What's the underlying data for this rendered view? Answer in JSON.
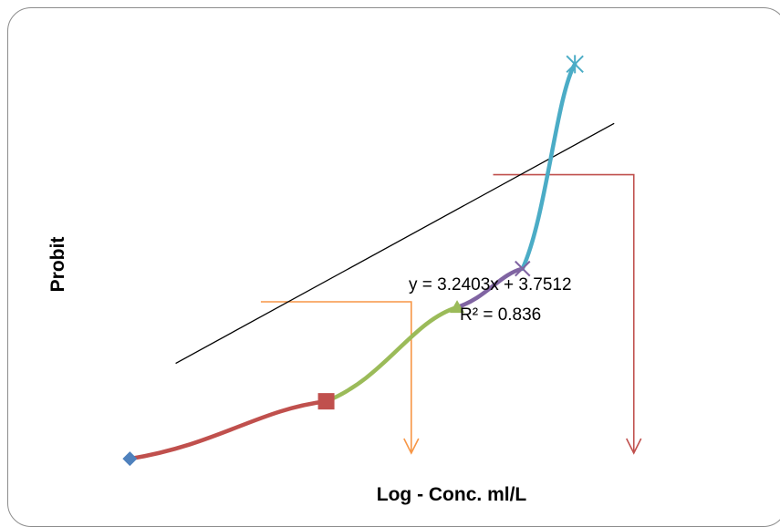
{
  "chart_data": {
    "type": "line",
    "xlabel": "Log - Conc. ml/L",
    "ylabel": "Probit",
    "grid": false,
    "legend": "none",
    "series": [
      {
        "marker": "diamond",
        "color": "#4f81bd",
        "segment_color": "#c0504d",
        "points": [
          [
            0.02,
            3.18
          ],
          [
            0.32,
            3.7
          ]
        ]
      },
      {
        "marker": "square",
        "color": "#c0504d",
        "segment_color": "#9bbb59",
        "points": [
          [
            0.32,
            3.7
          ],
          [
            0.52,
            4.55
          ]
        ]
      },
      {
        "marker": "triangle",
        "color": "#9bbb59",
        "segment_color": "#8064a2",
        "points": [
          [
            0.52,
            4.55
          ],
          [
            0.62,
            4.9
          ]
        ]
      },
      {
        "marker": "x",
        "color": "#8064a2",
        "segment_color": "#4bacc6",
        "points": [
          [
            0.62,
            4.9
          ],
          [
            0.7,
            6.75
          ]
        ]
      },
      {
        "marker": "star",
        "color": "#4bacc6",
        "points": [
          [
            0.7,
            6.75
          ]
        ]
      }
    ],
    "trendline": {
      "slope": 3.2403,
      "intercept": 3.7512,
      "x_range": [
        0.09,
        0.76
      ],
      "color": "#000000"
    },
    "equation_text": "y = 3.2403x + 3.7512",
    "r2_text": "R² = 0.836",
    "lc_guides": [
      {
        "probit": 4.6,
        "log_conc": 0.45,
        "color": "#f79646"
      },
      {
        "probit": 5.75,
        "log_conc": 0.79,
        "color": "#c0504d"
      }
    ],
    "xlim": [
      0,
      0.92
    ],
    "ylim": [
      3.0,
      7.0
    ]
  }
}
